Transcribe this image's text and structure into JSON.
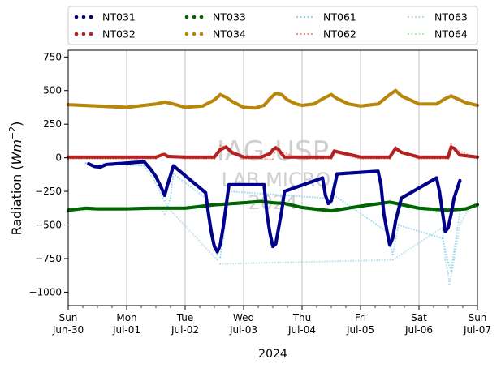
{
  "chart_data": {
    "type": "scatter",
    "ylabel": "Radiation (Wm⁻²)",
    "ylabel_parts": {
      "pre": "Radiation (",
      "var": "Wm",
      "sup": "−2",
      "post": ")"
    },
    "xlabel": "2024",
    "ylim": [
      -1100,
      800
    ],
    "xlim": [
      0,
      7
    ],
    "yticks": [
      {
        "v": 750,
        "label": "750"
      },
      {
        "v": 500,
        "label": "500"
      },
      {
        "v": 250,
        "label": "250"
      },
      {
        "v": 0,
        "label": "0"
      },
      {
        "v": -250,
        "label": "−250"
      },
      {
        "v": -500,
        "label": "−500"
      },
      {
        "v": -750,
        "label": "−750"
      },
      {
        "v": -1000,
        "label": "−1000"
      }
    ],
    "xticks": [
      {
        "v": 0,
        "day": "Sun",
        "date": "Jun-30"
      },
      {
        "v": 1,
        "day": "Mon",
        "date": "Jul-01"
      },
      {
        "v": 2,
        "day": "Tue",
        "date": "Jul-02"
      },
      {
        "v": 3,
        "day": "Wed",
        "date": "Jul-03"
      },
      {
        "v": 4,
        "day": "Thu",
        "date": "Jul-04"
      },
      {
        "v": 5,
        "day": "Fri",
        "date": "Jul-05"
      },
      {
        "v": 6,
        "day": "Sat",
        "date": "Jul-06"
      },
      {
        "v": 7,
        "day": "Sun",
        "date": "Jul-07"
      }
    ],
    "x_gridlines": true,
    "legend_placement": "top, above plot, 4 columns",
    "watermark": [
      "IAG-USP",
      "LAB MICRO",
      "2024"
    ],
    "series": [
      {
        "name": "NT031",
        "color": "#00008b",
        "style": "dots",
        "points": [
          [
            0.35,
            -45
          ],
          [
            0.45,
            -65
          ],
          [
            0.55,
            -70
          ],
          [
            0.65,
            -50
          ],
          [
            1.3,
            -30
          ],
          [
            1.4,
            -80
          ],
          [
            1.5,
            -140
          ],
          [
            1.6,
            -230
          ],
          [
            1.65,
            -280
          ],
          [
            1.7,
            -200
          ],
          [
            1.75,
            -130
          ],
          [
            1.8,
            -60
          ],
          [
            2.35,
            -260
          ],
          [
            2.4,
            -420
          ],
          [
            2.45,
            -560
          ],
          [
            2.5,
            -660
          ],
          [
            2.55,
            -700
          ],
          [
            2.6,
            -650
          ],
          [
            2.65,
            -520
          ],
          [
            2.7,
            -360
          ],
          [
            2.75,
            -200
          ],
          [
            3.35,
            -200
          ],
          [
            3.4,
            -420
          ],
          [
            3.45,
            -560
          ],
          [
            3.5,
            -660
          ],
          [
            3.55,
            -640
          ],
          [
            3.6,
            -520
          ],
          [
            3.65,
            -400
          ],
          [
            3.7,
            -250
          ],
          [
            4.35,
            -150
          ],
          [
            4.4,
            -280
          ],
          [
            4.45,
            -340
          ],
          [
            4.5,
            -320
          ],
          [
            4.55,
            -220
          ],
          [
            4.6,
            -120
          ],
          [
            5.3,
            -100
          ],
          [
            5.35,
            -200
          ],
          [
            5.4,
            -420
          ],
          [
            5.45,
            -540
          ],
          [
            5.5,
            -650
          ],
          [
            5.55,
            -600
          ],
          [
            5.6,
            -470
          ],
          [
            5.7,
            -300
          ],
          [
            6.3,
            -150
          ],
          [
            6.35,
            -250
          ],
          [
            6.4,
            -400
          ],
          [
            6.45,
            -550
          ],
          [
            6.5,
            -520
          ],
          [
            6.55,
            -420
          ],
          [
            6.6,
            -300
          ],
          [
            6.7,
            -170
          ]
        ]
      },
      {
        "name": "NT032",
        "color": "#b22222",
        "style": "dots",
        "points": [
          [
            0,
            5
          ],
          [
            0.5,
            5
          ],
          [
            1,
            5
          ],
          [
            1.5,
            5
          ],
          [
            1.6,
            20
          ],
          [
            1.65,
            25
          ],
          [
            1.7,
            10
          ],
          [
            2,
            5
          ],
          [
            2.5,
            5
          ],
          [
            2.6,
            60
          ],
          [
            2.7,
            80
          ],
          [
            2.8,
            40
          ],
          [
            3,
            5
          ],
          [
            3.3,
            5
          ],
          [
            3.45,
            30
          ],
          [
            3.5,
            60
          ],
          [
            3.55,
            75
          ],
          [
            3.6,
            60
          ],
          [
            3.65,
            30
          ],
          [
            3.7,
            5
          ],
          [
            4,
            5
          ],
          [
            4.5,
            5
          ],
          [
            4.55,
            50
          ],
          [
            4.65,
            40
          ],
          [
            5,
            5
          ],
          [
            5.5,
            5
          ],
          [
            5.6,
            70
          ],
          [
            5.7,
            40
          ],
          [
            6,
            5
          ],
          [
            6.5,
            5
          ],
          [
            6.55,
            80
          ],
          [
            6.6,
            70
          ],
          [
            6.7,
            20
          ],
          [
            7,
            5
          ]
        ]
      },
      {
        "name": "NT033",
        "color": "#006400",
        "style": "dots",
        "points": [
          [
            0,
            -390
          ],
          [
            0.3,
            -375
          ],
          [
            0.5,
            -380
          ],
          [
            1,
            -380
          ],
          [
            1.4,
            -375
          ],
          [
            1.5,
            -375
          ],
          [
            2,
            -375
          ],
          [
            2.5,
            -350
          ],
          [
            3,
            -335
          ],
          [
            3.3,
            -325
          ],
          [
            3.5,
            -335
          ],
          [
            3.7,
            -340
          ],
          [
            4,
            -370
          ],
          [
            4.5,
            -395
          ],
          [
            5,
            -360
          ],
          [
            5.5,
            -330
          ],
          [
            6,
            -375
          ],
          [
            6.5,
            -390
          ],
          [
            6.8,
            -380
          ],
          [
            7,
            -350
          ]
        ]
      },
      {
        "name": "NT034",
        "color": "#b8860b",
        "style": "dots",
        "points": [
          [
            0,
            395
          ],
          [
            0.5,
            385
          ],
          [
            1,
            375
          ],
          [
            1.5,
            400
          ],
          [
            1.65,
            415
          ],
          [
            1.8,
            400
          ],
          [
            2,
            375
          ],
          [
            2.3,
            385
          ],
          [
            2.5,
            430
          ],
          [
            2.6,
            470
          ],
          [
            2.7,
            450
          ],
          [
            2.8,
            420
          ],
          [
            3,
            375
          ],
          [
            3.2,
            370
          ],
          [
            3.35,
            390
          ],
          [
            3.45,
            440
          ],
          [
            3.55,
            480
          ],
          [
            3.65,
            470
          ],
          [
            3.75,
            430
          ],
          [
            3.9,
            400
          ],
          [
            4,
            390
          ],
          [
            4.2,
            400
          ],
          [
            4.4,
            450
          ],
          [
            4.5,
            470
          ],
          [
            4.6,
            440
          ],
          [
            4.8,
            400
          ],
          [
            5,
            385
          ],
          [
            5.3,
            400
          ],
          [
            5.5,
            470
          ],
          [
            5.6,
            500
          ],
          [
            5.7,
            460
          ],
          [
            5.9,
            420
          ],
          [
            6,
            400
          ],
          [
            6.3,
            400
          ],
          [
            6.45,
            440
          ],
          [
            6.55,
            460
          ],
          [
            6.65,
            440
          ],
          [
            6.8,
            410
          ],
          [
            7,
            390
          ]
        ]
      },
      {
        "name": "NT061",
        "color": "#87ceeb",
        "style": "dotted",
        "points": [
          [
            0.3,
            -40
          ],
          [
            0.4,
            -55
          ],
          [
            0.5,
            -60
          ],
          [
            0.6,
            -45
          ],
          [
            1.3,
            -60
          ],
          [
            1.45,
            -150
          ],
          [
            1.6,
            -280
          ],
          [
            1.7,
            -360
          ],
          [
            1.75,
            -300
          ],
          [
            1.8,
            -120
          ],
          [
            2.35,
            -300
          ],
          [
            2.45,
            -560
          ],
          [
            2.55,
            -720
          ],
          [
            2.6,
            -740
          ],
          [
            2.65,
            -600
          ],
          [
            2.75,
            -250
          ],
          [
            4.4,
            -300
          ],
          [
            4.5,
            -340
          ],
          [
            4.55,
            -280
          ],
          [
            5.45,
            -550
          ],
          [
            5.55,
            -720
          ],
          [
            5.65,
            -500
          ],
          [
            6.4,
            -600
          ],
          [
            6.5,
            -780
          ],
          [
            6.55,
            -840
          ],
          [
            6.6,
            -700
          ],
          [
            6.7,
            -400
          ]
        ]
      },
      {
        "name": "NT062",
        "color": "#fa8072",
        "style": "dotted",
        "points": [
          [
            0,
            -10
          ],
          [
            0.5,
            -10
          ],
          [
            1,
            -10
          ],
          [
            1.5,
            -10
          ],
          [
            1.6,
            30
          ],
          [
            1.7,
            20
          ],
          [
            2,
            -10
          ],
          [
            2.5,
            -10
          ],
          [
            2.6,
            90
          ],
          [
            2.7,
            80
          ],
          [
            3,
            -10
          ],
          [
            3.5,
            -10
          ],
          [
            3.55,
            60
          ],
          [
            4,
            -10
          ],
          [
            4.5,
            -10
          ],
          [
            4.55,
            40
          ],
          [
            5,
            -10
          ],
          [
            5.5,
            -10
          ],
          [
            5.6,
            80
          ],
          [
            5.7,
            50
          ],
          [
            6,
            -10
          ],
          [
            6.5,
            -10
          ],
          [
            6.55,
            100
          ],
          [
            6.6,
            70
          ],
          [
            7,
            -10
          ]
        ]
      },
      {
        "name": "NT063",
        "color": "#add8e6",
        "style": "dotted",
        "points": [
          [
            1.6,
            -380
          ],
          [
            1.65,
            -420
          ],
          [
            1.7,
            -370
          ],
          [
            2.55,
            -760
          ],
          [
            2.6,
            -790
          ],
          [
            5.55,
            -760
          ],
          [
            6.4,
            -520
          ],
          [
            6.45,
            -760
          ],
          [
            6.5,
            -860
          ],
          [
            6.52,
            -940
          ],
          [
            6.55,
            -880
          ],
          [
            6.6,
            -760
          ],
          [
            6.7,
            -500
          ],
          [
            6.85,
            -380
          ]
        ]
      },
      {
        "name": "NT064",
        "color": "#98fb98",
        "style": "dotted",
        "points": [
          [
            0,
            -400
          ],
          [
            0.3,
            -390
          ],
          [
            0.6,
            -390
          ],
          [
            1,
            -385
          ],
          [
            1.4,
            -375
          ],
          [
            1.6,
            -385
          ],
          [
            2,
            -375
          ],
          [
            2.4,
            -345
          ],
          [
            2.7,
            -345
          ],
          [
            3,
            -340
          ],
          [
            3.3,
            -325
          ],
          [
            3.6,
            -340
          ],
          [
            3.8,
            -345
          ],
          [
            4,
            -375
          ],
          [
            4.4,
            -405
          ],
          [
            4.8,
            -375
          ],
          [
            5,
            -365
          ],
          [
            5.3,
            -335
          ],
          [
            5.6,
            -345
          ],
          [
            6,
            -385
          ],
          [
            6.3,
            -400
          ],
          [
            6.6,
            -395
          ],
          [
            6.85,
            -380
          ],
          [
            7,
            -355
          ]
        ]
      }
    ]
  }
}
